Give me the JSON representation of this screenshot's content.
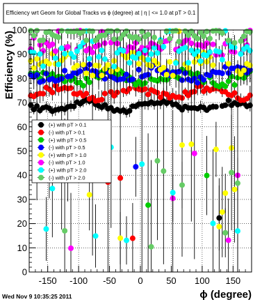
{
  "chart_data": {
    "type": "scatter",
    "title": "Efficiency wrt Geom for Global Tracks vs ϕ (degree) at |  η | <= 1.0 at pT > 0.1",
    "xlabel": "ϕ (degree)",
    "ylabel": "Efficiency (%)",
    "xlim": [
      -180,
      180
    ],
    "ylim": [
      0,
      100
    ],
    "x_ticks": [
      -150,
      -100,
      -50,
      0,
      50,
      100,
      150
    ],
    "y_ticks": [
      0,
      10,
      20,
      30,
      40,
      50,
      60,
      70,
      80,
      90,
      100
    ],
    "x_tick_labels": [
      "-150",
      "-100",
      "-50",
      "0",
      "50",
      "100",
      "150"
    ],
    "y_tick_labels": [
      "0",
      "10",
      "20",
      "30",
      "40",
      "50",
      "60",
      "70",
      "80",
      "90",
      "100"
    ],
    "grid": true,
    "legend_position": "left-middle",
    "series": [
      {
        "name": "(+) with pT > 0.1",
        "color": "#000000",
        "base": 68.5,
        "amp": 1.5,
        "jitter": 1.2,
        "spread": 2,
        "sat": 0,
        "dip": 0.02
      },
      {
        "name": "(-) with pT > 0.1",
        "color": "#ff0000",
        "base": 74,
        "amp": 2,
        "jitter": 1.5,
        "spread": 4,
        "sat": 0,
        "dip": 0.03
      },
      {
        "name": "(+) with pT > 0.5",
        "color": "#00cc00",
        "base": 80,
        "amp": 2,
        "jitter": 2,
        "spread": 5,
        "sat": 0,
        "dip": 0.04
      },
      {
        "name": "(-) with pT > 0.5",
        "color": "#0000ff",
        "base": 82,
        "amp": 2,
        "jitter": 2,
        "spread": 6,
        "sat": 0,
        "dip": 0.05
      },
      {
        "name": "(+) with pT > 1.0",
        "color": "#ffff00",
        "base": 86,
        "amp": 2,
        "jitter": 3,
        "spread": 7,
        "sat": 0.05,
        "dip": 0.1
      },
      {
        "name": "(-) with pT > 1.0",
        "color": "#ff00ff",
        "base": 93,
        "amp": 1,
        "jitter": 3,
        "spread": 6,
        "sat": 0.1,
        "dip": 0.08
      },
      {
        "name": "(+) with pT > 2.0",
        "color": "#00ffff",
        "base": 90,
        "amp": 2,
        "jitter": 4,
        "spread": 8,
        "sat": 0.15,
        "dip": 0.16
      },
      {
        "name": "(-) with pT > 2.0",
        "color": "#66cc66",
        "base": 97,
        "amp": 1,
        "jitter": 2,
        "spread": 5,
        "sat": 0.45,
        "dip": 0.12
      }
    ]
  },
  "footer": {
    "timestamp": "Wed Nov  9 10:35:25 2011"
  }
}
